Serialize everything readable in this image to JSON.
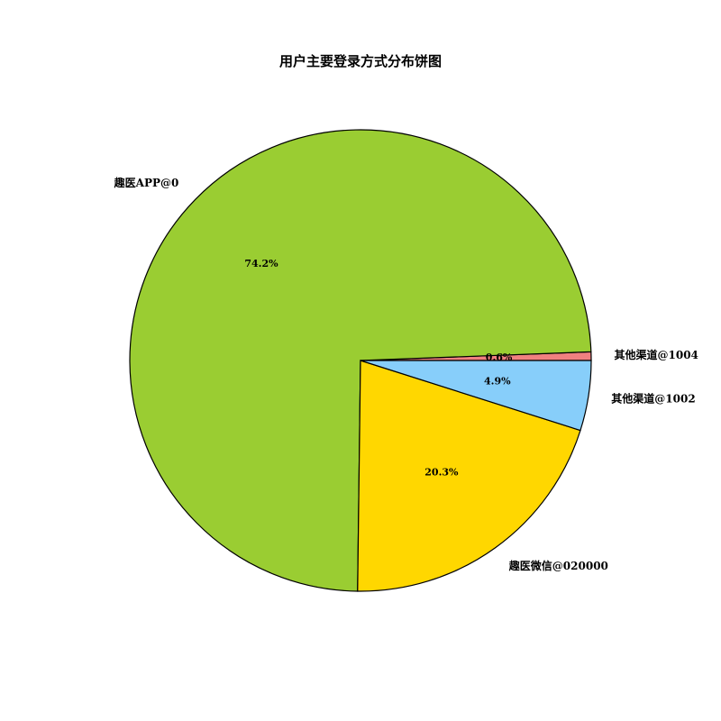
{
  "chart_data": {
    "type": "pie",
    "title": "用户主要登录方式分布饼图",
    "slices": [
      {
        "label": "其他渠道@1004",
        "value": 0.6,
        "pct_label": "0.6%",
        "color": "#F08080"
      },
      {
        "label": "趣医APP@0",
        "value": 74.2,
        "pct_label": "74.2%",
        "color": "#9ACD32"
      },
      {
        "label": "趣医微信@020000",
        "value": 20.3,
        "pct_label": "20.3%",
        "color": "#FFD700"
      },
      {
        "label": "其他渠道@1002",
        "value": 4.9,
        "pct_label": "4.9%",
        "color": "#87CEFA"
      }
    ],
    "start_angle_deg": 0,
    "direction": "counterclockwise"
  }
}
